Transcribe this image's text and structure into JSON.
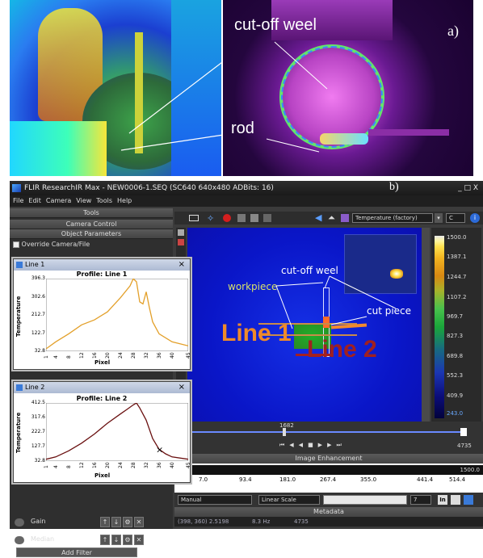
{
  "panel_a": {
    "label_wheel": "cut-off weel",
    "label_rod": "rod",
    "tag": "a)"
  },
  "app": {
    "title": "FLIR ResearchIR Max - NEW0006-1.SEQ (SC640 640x480 ADBits: 16)",
    "tag": "b)",
    "window_controls": "_ □ X"
  },
  "menu": [
    "File",
    "Edit",
    "Camera",
    "View",
    "Tools",
    "Help"
  ],
  "sidebar": {
    "tools_header": "Tools",
    "camera_control": "Camera Control",
    "object_parameters": "Object Parameters",
    "override_label": "Override Camera/File",
    "filters": [
      {
        "label": "Gain"
      },
      {
        "label": "Median"
      }
    ],
    "add_filter": "Add Filter"
  },
  "line1": {
    "window_title": "Line 1",
    "graph_title": "Profile: Line 1",
    "ylabel": "Temperature",
    "xlabel": "Pixel",
    "yticks": [
      "396.3",
      "302.6",
      "212.7",
      "122.7",
      "32.8"
    ],
    "xticks": [
      "1",
      "4",
      "8",
      "12",
      "16",
      "20",
      "24",
      "28",
      "32",
      "36",
      "40",
      "45"
    ]
  },
  "line2": {
    "window_title": "Line 2",
    "graph_title": "Profile: Line 2",
    "ylabel": "Temperature",
    "xlabel": "Pixel",
    "yticks": [
      "412.5",
      "317.6",
      "222.7",
      "127.7",
      "32.8"
    ],
    "xticks": [
      "1",
      "4",
      "8",
      "12",
      "16",
      "20",
      "24",
      "28",
      "32",
      "36",
      "40",
      "45"
    ]
  },
  "toolbar": {
    "temperature_mode": "Temperature (factory)",
    "unit": "C"
  },
  "image_labels": {
    "wheel": "cut-off weel",
    "workpiece": "workpiece",
    "cut_piece": "cut piece",
    "line1": "Line 1",
    "line2": "Line 2"
  },
  "colorbar": {
    "values": [
      "1500.0",
      "1387.1",
      "1244.7",
      "1107.2",
      "969.7",
      "827.3",
      "689.8",
      "552.3",
      "409.9",
      "243.0"
    ],
    "colors": [
      "#ffffff",
      "#ffe14d",
      "#d88812",
      "#48c14c",
      "#1b36b2",
      "#02023c"
    ]
  },
  "timeline": {
    "current": "1682",
    "end": "4735"
  },
  "enhancement": {
    "header": "Image Enhancement",
    "max": "1500.0",
    "min": "0",
    "ticks": [
      "7.0",
      "93.4",
      "181.0",
      "267.4",
      "355.0",
      "441.4",
      "514.4"
    ],
    "mode": "Manual",
    "scale": "Linear Scale",
    "level": "7"
  },
  "metadata": {
    "header": "Metadata",
    "coords": "(398, 360) 2.5198",
    "rate": "8.3 Hz",
    "frames": "4735"
  },
  "chart_data": [
    {
      "type": "line",
      "title": "Profile: Line 1",
      "xlabel": "Pixel",
      "ylabel": "Temperature",
      "ylim": [
        32.8,
        396.3
      ],
      "x": [
        1,
        4,
        8,
        12,
        16,
        20,
        24,
        27,
        28,
        29,
        30,
        31,
        32,
        33,
        34,
        36,
        40,
        45
      ],
      "series": [
        {
          "values": [
            45,
            80,
            120,
            165,
            190,
            230,
            300,
            360,
            396,
            380,
            280,
            270,
            330,
            250,
            180,
            120,
            80,
            60
          ]
        }
      ]
    },
    {
      "type": "line",
      "title": "Profile: Line 2",
      "xlabel": "Pixel",
      "ylabel": "Temperature",
      "ylim": [
        32.8,
        412.5
      ],
      "x": [
        1,
        4,
        8,
        12,
        16,
        20,
        24,
        26,
        28,
        29,
        30,
        32,
        34,
        36,
        38,
        40,
        45
      ],
      "series": [
        {
          "values": [
            45,
            60,
            100,
            150,
            210,
            280,
            340,
            370,
            400,
            412,
            380,
            300,
            180,
            110,
            80,
            60,
            45
          ]
        }
      ]
    }
  ]
}
